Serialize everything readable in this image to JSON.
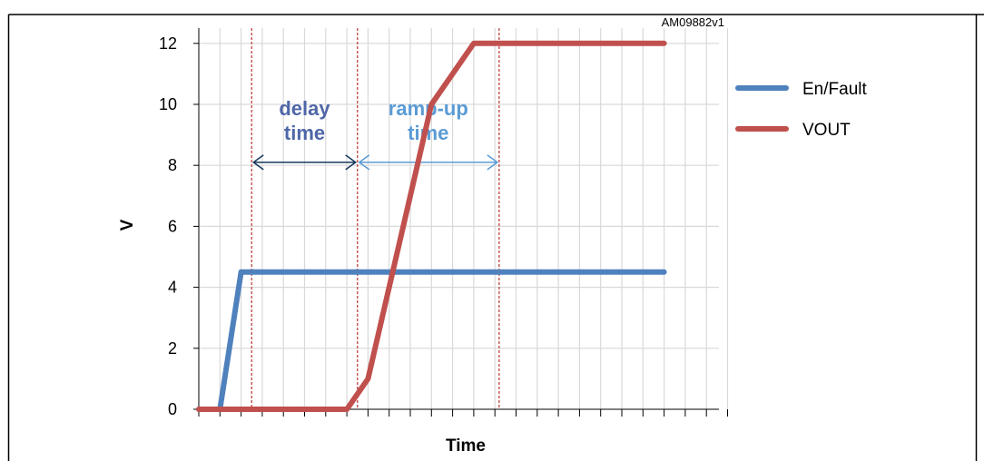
{
  "chart_data": {
    "type": "line",
    "xlabel": "Time",
    "ylabel": "V",
    "ylim": [
      0,
      12.5
    ],
    "yticks": [
      0,
      2,
      4,
      6,
      8,
      10,
      12
    ],
    "x_ticks_count": 25,
    "x_tick_labels_shown": false,
    "grid": true,
    "legend": "right",
    "series": [
      {
        "name": "En/Fault",
        "color": "#4f81bd",
        "x": [
          0,
          1,
          2,
          3,
          4,
          5,
          6,
          7,
          8,
          9,
          10,
          11,
          12,
          13,
          14,
          15,
          16,
          17,
          18,
          19,
          20,
          21,
          22
        ],
        "values": [
          0,
          0,
          4.5,
          4.5,
          4.5,
          4.5,
          4.5,
          4.5,
          4.5,
          4.5,
          4.5,
          4.5,
          4.5,
          4.5,
          4.5,
          4.5,
          4.5,
          4.5,
          4.5,
          4.5,
          4.5,
          4.5,
          4.5
        ]
      },
      {
        "name": "VOUT",
        "color": "#c0504d",
        "x": [
          0,
          1,
          2,
          3,
          4,
          5,
          6,
          7,
          8,
          9,
          10,
          11,
          12,
          13,
          14,
          15,
          16,
          17,
          18,
          19,
          20,
          21,
          22
        ],
        "values": [
          0,
          0,
          0,
          0,
          0,
          0,
          0,
          0,
          1,
          4,
          7,
          10,
          11,
          12,
          12,
          12,
          12,
          12,
          12,
          12,
          12,
          12,
          12
        ]
      }
    ],
    "markers": {
      "color": "#c0504d",
      "x": [
        2.5,
        7.5,
        14.2
      ]
    },
    "annotations": [
      {
        "id": "delay",
        "lines": [
          "delay",
          "time"
        ],
        "color": "#4f67a8",
        "from": 2.5,
        "to": 7.5,
        "arrow_color": "#17375e"
      },
      {
        "id": "rampup",
        "lines": [
          "ramp-up",
          "time"
        ],
        "color": "#5a9bd5",
        "from": 7.5,
        "to": 14.2,
        "arrow_color": "#5a9bd5"
      }
    ],
    "figure_id": "AM09882v1"
  }
}
